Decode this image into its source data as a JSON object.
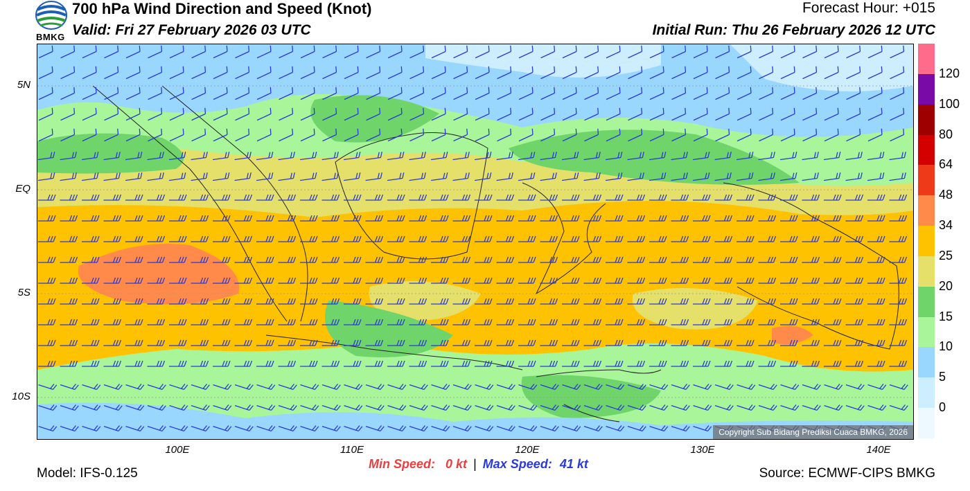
{
  "header": {
    "title": "700 hPa Wind Direction and Speed (Knot)",
    "valid": "Valid: Fri 27 February 2026 03 UTC",
    "forecast_hour": "Forecast Hour: +015",
    "initial_run": "Initial Run: Thu 26 February 2026 12 UTC",
    "logo_text": "BMKG"
  },
  "map": {
    "lat_labels": [
      "5N",
      "EQ",
      "5S",
      "10S"
    ],
    "lon_labels": [
      "100E",
      "110E",
      "120E",
      "130E",
      "140E"
    ],
    "copyright": "Copyright Sub Bidang Prediksi Cuaca BMKG, 2026",
    "barb_color": "#2a3ad8"
  },
  "colorbar": {
    "labels": [
      "120",
      "100",
      "80",
      "64",
      "48",
      "34",
      "25",
      "20",
      "15",
      "10",
      "5",
      "0"
    ],
    "colors": [
      "#ff6b8a",
      "#7a0aa8",
      "#9e0000",
      "#d40000",
      "#ee3a18",
      "#ff8a4a",
      "#ffc200",
      "#e5e06a",
      "#6fd46a",
      "#a8f59a",
      "#9ad7ff",
      "#cdeeff",
      "#eef8ff"
    ]
  },
  "footer": {
    "model": "Model: IFS-0.125",
    "min_label": "Min Speed:",
    "min_value": "0 kt",
    "separator": "|",
    "max_label": "Max Speed:",
    "max_value": "41 kt",
    "source": "Source: ECMWF-CIPS BMKG"
  }
}
